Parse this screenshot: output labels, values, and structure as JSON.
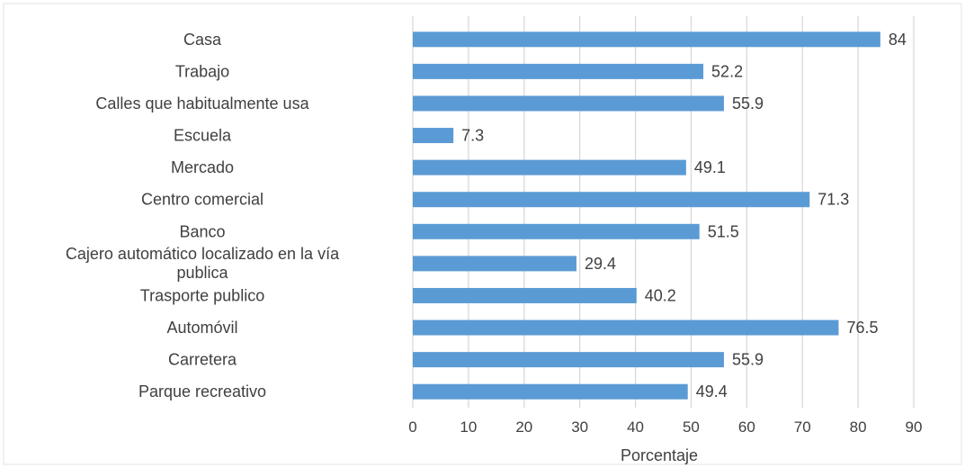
{
  "chart_data": {
    "type": "bar",
    "orientation": "horizontal",
    "title": "",
    "xlabel": "Porcentaje",
    "ylabel": "",
    "xlim": [
      0,
      90
    ],
    "xticks": [
      0,
      10,
      20,
      30,
      40,
      50,
      60,
      70,
      80,
      90
    ],
    "grid": true,
    "legend": "none",
    "bar_color": "#5b9bd5",
    "categories": [
      "Casa",
      "Trabajo",
      "Calles que habitualmente usa",
      "Escuela",
      "Mercado",
      "Centro comercial",
      "Banco",
      "Cajero automático localizado en la vía publica",
      "Trasporte publico",
      "Automóvil",
      "Carretera",
      "Parque recreativo"
    ],
    "values": [
      84,
      52.2,
      55.9,
      7.3,
      49.1,
      71.3,
      51.5,
      29.4,
      40.2,
      76.5,
      55.9,
      49.4
    ],
    "value_labels": [
      "84",
      "52.2",
      "55.9",
      "7.3",
      "49.1",
      "71.3",
      "51.5",
      "29.4",
      "40.2",
      "76.5",
      "55.9",
      "49.4"
    ]
  }
}
